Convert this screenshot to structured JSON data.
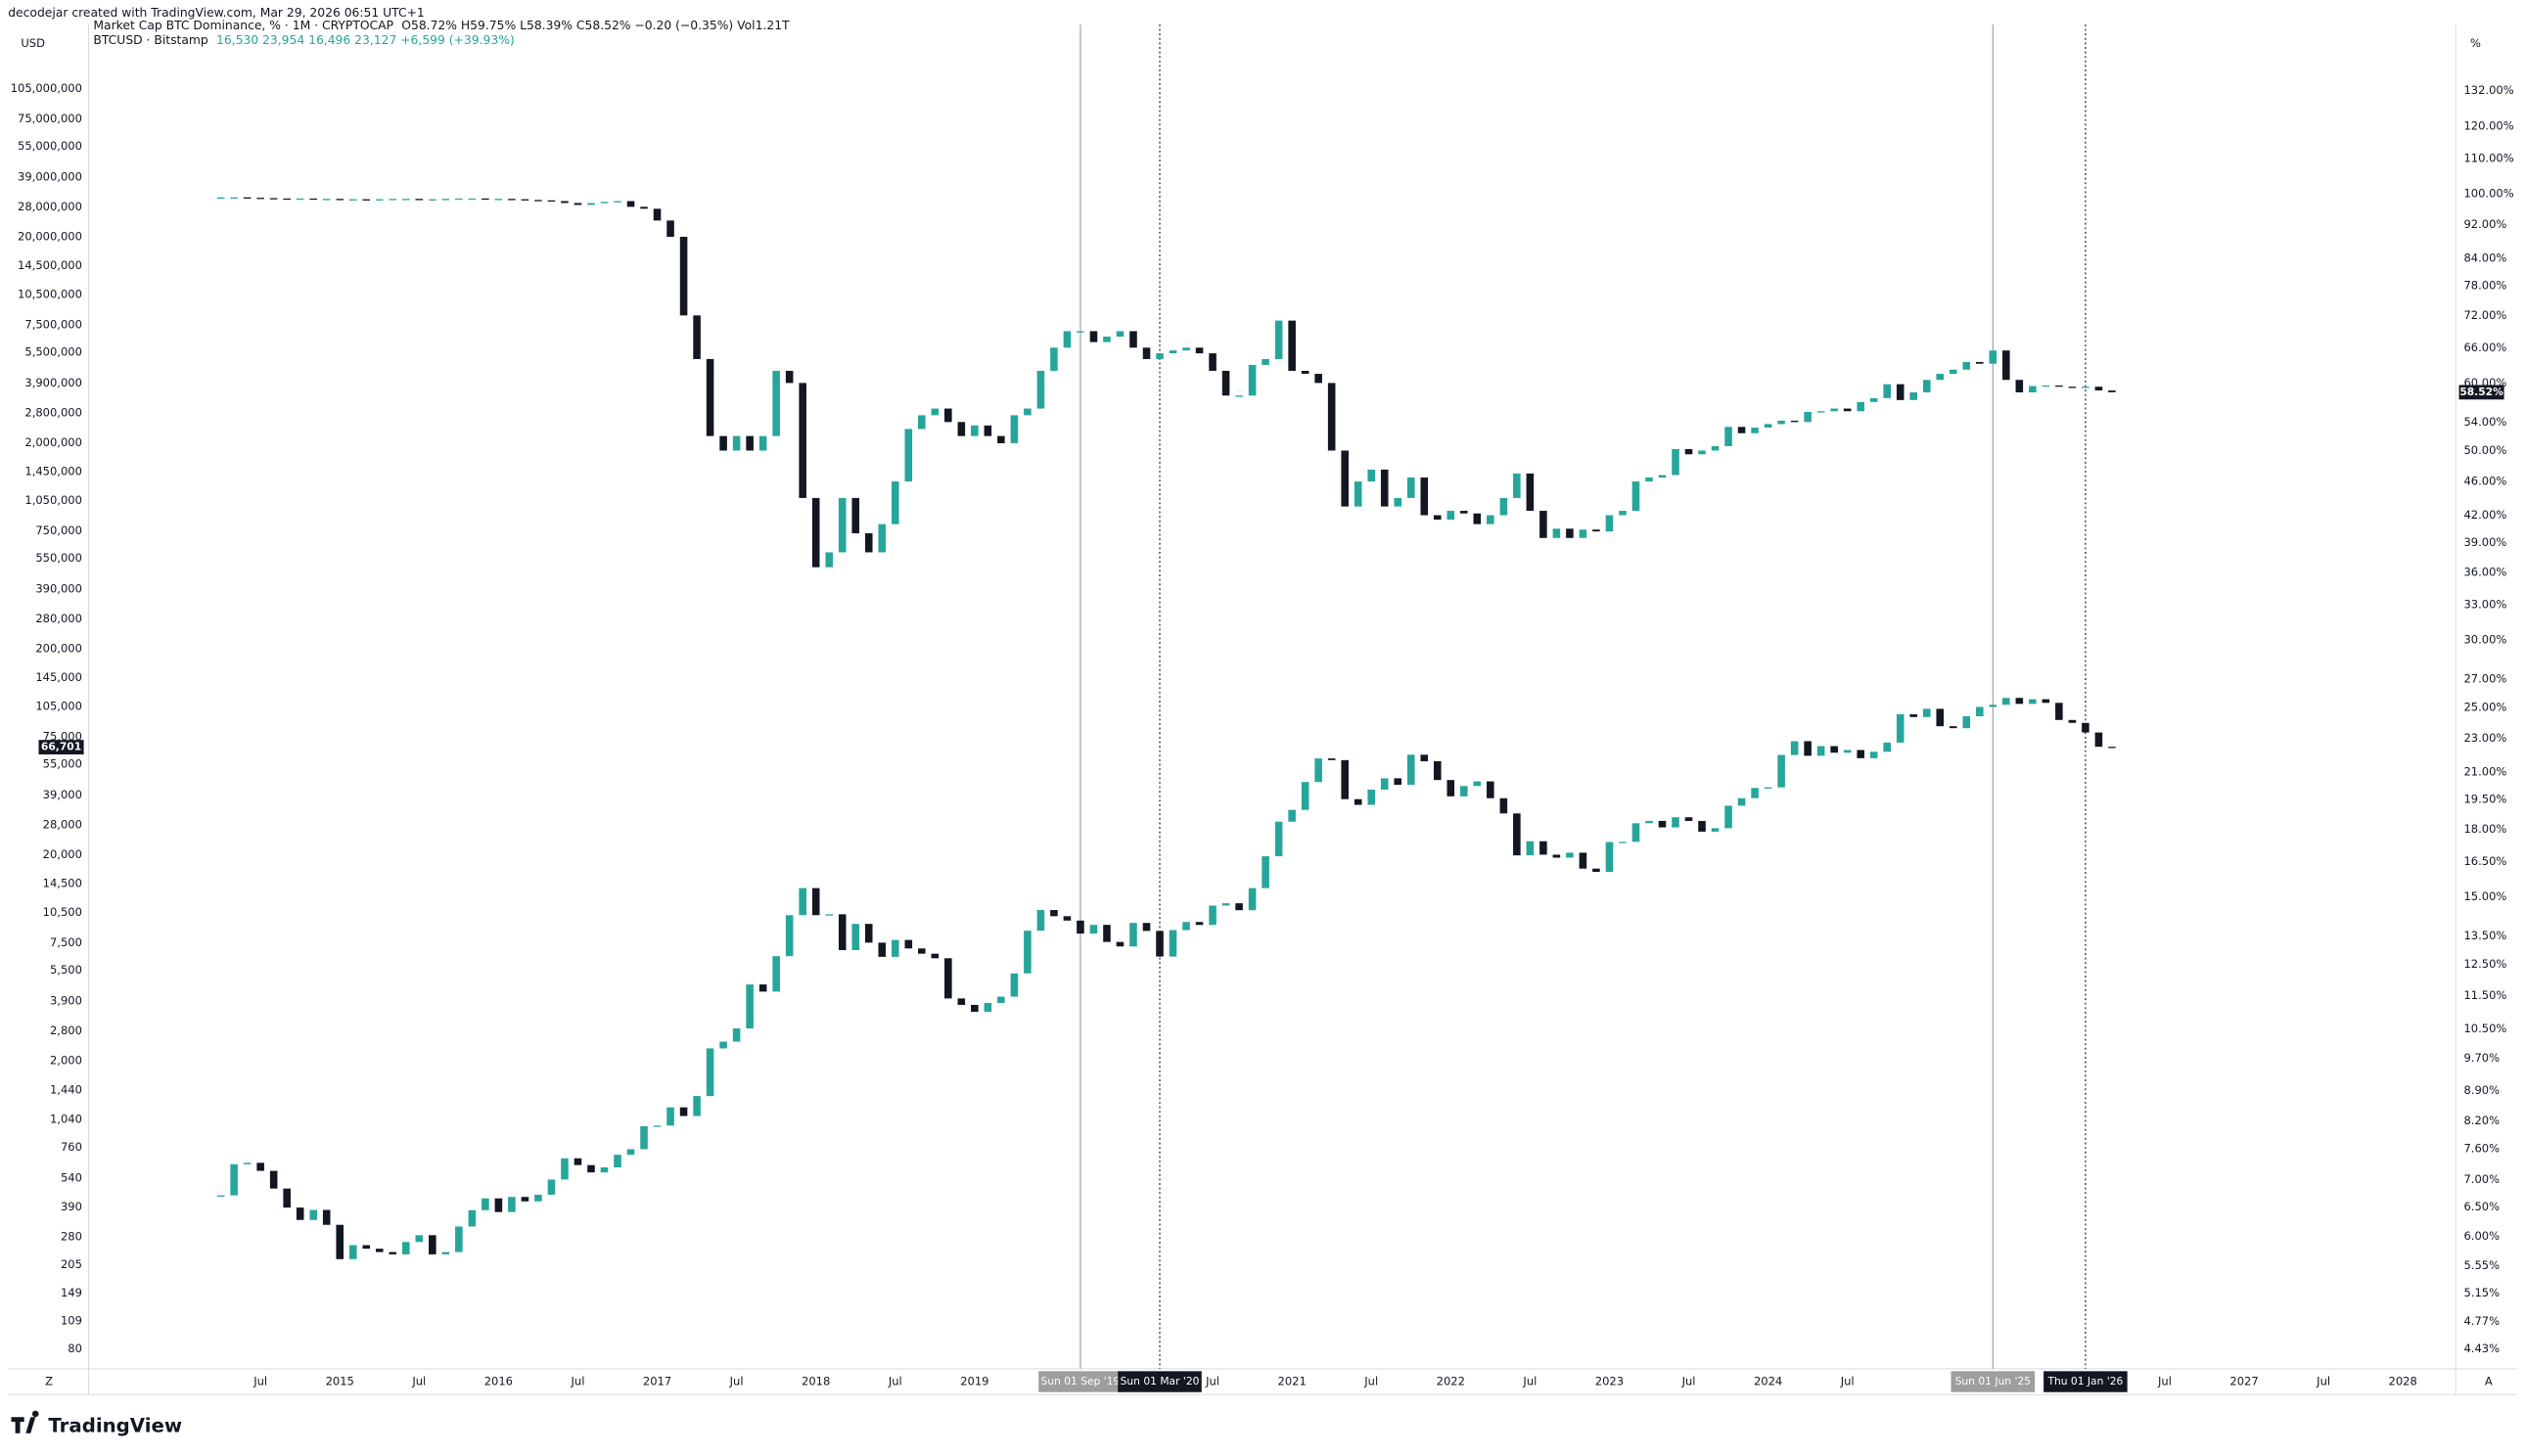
{
  "header": {
    "credit": "decodejar created with TradingView.com, Mar 29, 2026 06:51 UTC+1",
    "left_unit": "USD",
    "right_unit": "%",
    "left_corner": "Z",
    "right_corner": "A",
    "logo": "TradingView"
  },
  "chart_data": {
    "type": "candlestick",
    "log_scale": true,
    "grid": false,
    "up_color": "#26a69a",
    "down_color": "#131722",
    "x": [
      "2014-04",
      "2014-05",
      "2014-06",
      "2014-07",
      "2014-08",
      "2014-09",
      "2014-10",
      "2014-11",
      "2014-12",
      "2015-01",
      "2015-02",
      "2015-03",
      "2015-04",
      "2015-05",
      "2015-06",
      "2015-07",
      "2015-08",
      "2015-09",
      "2015-10",
      "2015-11",
      "2015-12",
      "2016-01",
      "2016-02",
      "2016-03",
      "2016-04",
      "2016-05",
      "2016-06",
      "2016-07",
      "2016-08",
      "2016-09",
      "2016-10",
      "2016-11",
      "2016-12",
      "2017-01",
      "2017-02",
      "2017-03",
      "2017-04",
      "2017-05",
      "2017-06",
      "2017-07",
      "2017-08",
      "2017-09",
      "2017-10",
      "2017-11",
      "2017-12",
      "2018-01",
      "2018-02",
      "2018-03",
      "2018-04",
      "2018-05",
      "2018-06",
      "2018-07",
      "2018-08",
      "2018-09",
      "2018-10",
      "2018-11",
      "2018-12",
      "2019-01",
      "2019-02",
      "2019-03",
      "2019-04",
      "2019-05",
      "2019-06",
      "2019-07",
      "2019-08",
      "2019-09",
      "2019-10",
      "2019-11",
      "2019-12",
      "2020-01",
      "2020-02",
      "2020-03",
      "2020-04",
      "2020-05",
      "2020-06",
      "2020-07",
      "2020-08",
      "2020-09",
      "2020-10",
      "2020-11",
      "2020-12",
      "2021-01",
      "2021-02",
      "2021-03",
      "2021-04",
      "2021-05",
      "2021-06",
      "2021-07",
      "2021-08",
      "2021-09",
      "2021-10",
      "2021-11",
      "2021-12",
      "2022-01",
      "2022-02",
      "2022-03",
      "2022-04",
      "2022-05",
      "2022-06",
      "2022-07",
      "2022-08",
      "2022-09",
      "2022-10",
      "2022-11",
      "2022-12",
      "2023-01",
      "2023-02",
      "2023-03",
      "2023-04",
      "2023-05",
      "2023-06",
      "2023-07",
      "2023-08",
      "2023-09",
      "2023-10",
      "2023-11",
      "2023-12",
      "2024-01",
      "2024-02",
      "2024-03",
      "2024-04",
      "2024-05",
      "2024-06",
      "2024-07",
      "2024-08",
      "2024-09",
      "2024-10",
      "2024-11",
      "2024-12",
      "2025-01",
      "2025-02",
      "2025-03",
      "2025-04",
      "2025-05",
      "2025-06",
      "2025-07",
      "2025-08",
      "2025-09",
      "2025-10",
      "2025-11",
      "2025-12",
      "2026-01",
      "2026-02",
      "2026-03"
    ],
    "series": [
      {
        "name": "Market Cap BTC Dominance, % · 1M · CRYPTOCAP",
        "legend": "O58.72%  H59.75%  L58.39%  C58.52%  −0.20 (−0.35%)  Vol1.21T",
        "legend_color": "#131722",
        "axis": "y2",
        "last_label": "58.52%",
        "values": [
          99,
          99,
          98.9,
          98.8,
          98.7,
          98.6,
          98.7,
          98.6,
          98.6,
          98.5,
          98.5,
          98.4,
          98.5,
          98.6,
          98.6,
          98.5,
          98.5,
          98.6,
          98.7,
          98.7,
          98.6,
          98.6,
          98.5,
          98.3,
          98.2,
          98,
          97.5,
          97,
          97.5,
          97.8,
          98,
          96.5,
          96,
          93,
          89,
          72,
          64,
          52,
          50,
          52,
          50,
          52,
          62,
          60,
          44,
          36.5,
          38,
          44,
          40,
          38,
          41,
          46,
          53,
          55,
          56,
          54,
          52,
          53.5,
          52,
          51,
          55,
          56,
          62,
          66,
          69,
          69,
          67,
          68,
          69,
          66,
          64,
          65,
          65.5,
          66,
          65,
          62,
          58,
          58,
          63,
          64,
          71,
          62,
          61.5,
          60,
          50,
          43,
          46,
          47.5,
          43,
          44,
          46.5,
          42,
          41.5,
          42.5,
          42.2,
          41,
          42,
          44,
          47,
          42.5,
          39.5,
          40.5,
          39.5,
          40.4,
          40.2,
          42,
          42.5,
          46,
          46.5,
          46.8,
          50.2,
          49.5,
          50,
          50.6,
          53.3,
          52.4,
          53.2,
          53.7,
          54.2,
          54,
          55.5,
          55.6,
          56,
          55.6,
          57,
          57.6,
          59.8,
          57.3,
          58.5,
          60.5,
          61.5,
          62.2,
          63.5,
          63.2,
          65.5,
          60.5,
          58.5,
          59.5,
          59.6,
          59.4,
          59.2,
          59.4,
          58.8,
          58.52
        ]
      },
      {
        "name": "BTCUSD · Bitstamp",
        "legend": "16,530  23,954  16,496  23,127  +6,599 (+39.93%)",
        "legend_color": "#26a69a",
        "axis": "y",
        "last_label": "66,701",
        "values": [
          445,
          630,
          640,
          585,
          480,
          388,
          338,
          378,
          320,
          218,
          255,
          245,
          236,
          230,
          264,
          285,
          230,
          236,
          314,
          377,
          430,
          369,
          437,
          416,
          448,
          531,
          673,
          624,
          575,
          608,
          700,
          745,
          963,
          970,
          1190,
          1080,
          1350,
          2300,
          2480,
          2875,
          4700,
          4340,
          6450,
          10200,
          13800,
          10200,
          10300,
          6900,
          9250,
          7500,
          6400,
          7730,
          7030,
          6630,
          6300,
          4020,
          3740,
          3460,
          3820,
          4100,
          5320,
          8570,
          10800,
          10080,
          9600,
          8300,
          9150,
          7560,
          7190,
          9350,
          8550,
          6420,
          8630,
          9450,
          9140,
          11350,
          11650,
          10780,
          13800,
          19700,
          29000,
          33100,
          45200,
          58800,
          57700,
          37300,
          35000,
          41500,
          47100,
          43800,
          61300,
          57000,
          46200,
          38500,
          43200,
          45500,
          37700,
          31800,
          19900,
          23300,
          20050,
          19400,
          20500,
          17160,
          16540,
          23100,
          23150,
          28500,
          29250,
          27200,
          30470,
          29230,
          25940,
          26960,
          34650,
          37720,
          42280,
          42580,
          61130,
          71300,
          60600,
          67500,
          62700,
          64600,
          58970,
          63330,
          70200,
          96400,
          93400,
          102400,
          84300,
          82500,
          94200,
          104600,
          107100,
          115700,
          108200,
          114000,
          109500,
          90400,
          87500,
          78600,
          67000,
          66701
        ]
      }
    ],
    "xlim": [
      "2013-06",
      "2028-05"
    ],
    "xticks": [
      {
        "value": "2014-07",
        "label": "Jul"
      },
      {
        "value": "2015-01",
        "label": "2015"
      },
      {
        "value": "2015-07",
        "label": "Jul"
      },
      {
        "value": "2016-01",
        "label": "2016"
      },
      {
        "value": "2016-07",
        "label": "Jul"
      },
      {
        "value": "2017-01",
        "label": "2017"
      },
      {
        "value": "2017-07",
        "label": "Jul"
      },
      {
        "value": "2018-01",
        "label": "2018"
      },
      {
        "value": "2018-07",
        "label": "Jul"
      },
      {
        "value": "2019-01",
        "label": "2019"
      },
      {
        "value": "2020-07",
        "label": "Jul"
      },
      {
        "value": "2021-01",
        "label": "2021"
      },
      {
        "value": "2021-07",
        "label": "Jul"
      },
      {
        "value": "2022-01",
        "label": "2022"
      },
      {
        "value": "2022-07",
        "label": "Jul"
      },
      {
        "value": "2023-01",
        "label": "2023"
      },
      {
        "value": "2023-07",
        "label": "Jul"
      },
      {
        "value": "2024-01",
        "label": "2024"
      },
      {
        "value": "2024-07",
        "label": "Jul"
      },
      {
        "value": "2026-07",
        "label": "Jul"
      },
      {
        "value": "2027-01",
        "label": "2027"
      },
      {
        "value": "2027-07",
        "label": "Jul"
      },
      {
        "value": "2028-01",
        "label": "2028"
      }
    ],
    "markers": [
      {
        "value": "2019-09",
        "label": "Sun 01 Sep '19",
        "color": "#9e9e9e",
        "line": "solid"
      },
      {
        "value": "2020-03",
        "label": "Sun 01 Mar '20",
        "color": "#131722",
        "line": "dotted"
      },
      {
        "value": "2025-06",
        "label": "Sun 01 Jun '25",
        "color": "#9e9e9e",
        "line": "solid"
      },
      {
        "value": "2026-01",
        "label": "Thu 01 Jan '26",
        "color": "#131722",
        "line": "dotted"
      }
    ],
    "ylim": [
      64,
      204000000
    ],
    "yticks": [
      {
        "value": 105000000,
        "label": "105,000,000"
      },
      {
        "value": 75000000,
        "label": "75,000,000"
      },
      {
        "value": 55000000,
        "label": "55,000,000"
      },
      {
        "value": 39000000,
        "label": "39,000,000"
      },
      {
        "value": 28000000,
        "label": "28,000,000"
      },
      {
        "value": 20000000,
        "label": "20,000,000"
      },
      {
        "value": 14500000,
        "label": "14,500,000"
      },
      {
        "value": 10500000,
        "label": "10,500,000"
      },
      {
        "value": 7500000,
        "label": "7,500,000"
      },
      {
        "value": 5500000,
        "label": "5,500,000"
      },
      {
        "value": 3900000,
        "label": "3,900,000"
      },
      {
        "value": 2800000,
        "label": "2,800,000"
      },
      {
        "value": 2000000,
        "label": "2,000,000"
      },
      {
        "value": 1450000,
        "label": "1,450,000"
      },
      {
        "value": 1050000,
        "label": "1,050,000"
      },
      {
        "value": 750000,
        "label": "750,000"
      },
      {
        "value": 550000,
        "label": "550,000"
      },
      {
        "value": 390000,
        "label": "390,000"
      },
      {
        "value": 280000,
        "label": "280,000"
      },
      {
        "value": 200000,
        "label": "200,000"
      },
      {
        "value": 145000,
        "label": "145,000"
      },
      {
        "value": 105000,
        "label": "105,000"
      },
      {
        "value": 75000,
        "label": "75,000"
      },
      {
        "value": 55000,
        "label": "55,000"
      },
      {
        "value": 39000,
        "label": "39,000"
      },
      {
        "value": 28000,
        "label": "28,000"
      },
      {
        "value": 20000,
        "label": "20,000"
      },
      {
        "value": 14500,
        "label": "14,500"
      },
      {
        "value": 10500,
        "label": "10,500"
      },
      {
        "value": 7500,
        "label": "7,500"
      },
      {
        "value": 5500,
        "label": "5,500"
      },
      {
        "value": 3900,
        "label": "3,900"
      },
      {
        "value": 2800,
        "label": "2,800"
      },
      {
        "value": 2000,
        "label": "2,000"
      },
      {
        "value": 1440,
        "label": "1,440"
      },
      {
        "value": 1040,
        "label": "1,040"
      },
      760,
      540,
      390,
      280,
      205,
      149,
      109,
      80
    ],
    "y2lim": [
      4.2,
      155.8
    ],
    "y2ticks": [
      {
        "value": 132,
        "label": "132.00%"
      },
      {
        "value": 120,
        "label": "120.00%"
      },
      {
        "value": 110,
        "label": "110.00%"
      },
      {
        "value": 100,
        "label": "100.00%"
      },
      {
        "value": 92,
        "label": "92.00%"
      },
      {
        "value": 84,
        "label": "84.00%"
      },
      {
        "value": 78,
        "label": "78.00%"
      },
      {
        "value": 72,
        "label": "72.00%"
      },
      {
        "value": 66,
        "label": "66.00%"
      },
      {
        "value": 60,
        "label": "60.00%"
      },
      {
        "value": 54,
        "label": "54.00%"
      },
      {
        "value": 50,
        "label": "50.00%"
      },
      {
        "value": 46,
        "label": "46.00%"
      },
      {
        "value": 42,
        "label": "42.00%"
      },
      {
        "value": 39,
        "label": "39.00%"
      },
      {
        "value": 36,
        "label": "36.00%"
      },
      {
        "value": 33,
        "label": "33.00%"
      },
      {
        "value": 30,
        "label": "30.00%"
      },
      {
        "value": 27,
        "label": "27.00%"
      },
      {
        "value": 25,
        "label": "25.00%"
      },
      {
        "value": 23,
        "label": "23.00%"
      },
      {
        "value": 21,
        "label": "21.00%"
      },
      {
        "value": 19.5,
        "label": "19.50%"
      },
      {
        "value": 18,
        "label": "18.00%"
      },
      {
        "value": 16.5,
        "label": "16.50%"
      },
      {
        "value": 15,
        "label": "15.00%"
      },
      {
        "value": 13.5,
        "label": "13.50%"
      },
      {
        "value": 12.5,
        "label": "12.50%"
      },
      {
        "value": 11.5,
        "label": "11.50%"
      },
      {
        "value": 10.5,
        "label": "10.50%"
      },
      {
        "value": 9.7,
        "label": "9.70%"
      },
      {
        "value": 8.9,
        "label": "8.90%"
      },
      {
        "value": 8.2,
        "label": "8.20%"
      },
      {
        "value": 7.6,
        "label": "7.60%"
      },
      {
        "value": 7,
        "label": "7.00%"
      },
      {
        "value": 6.5,
        "label": "6.50%"
      },
      {
        "value": 6,
        "label": "6.00%"
      },
      {
        "value": 5.55,
        "label": "5.55%"
      },
      {
        "value": 5.15,
        "label": "5.15%"
      },
      {
        "value": 4.77,
        "label": "4.77%"
      },
      {
        "value": 4.43,
        "label": "4.43%"
      }
    ]
  }
}
